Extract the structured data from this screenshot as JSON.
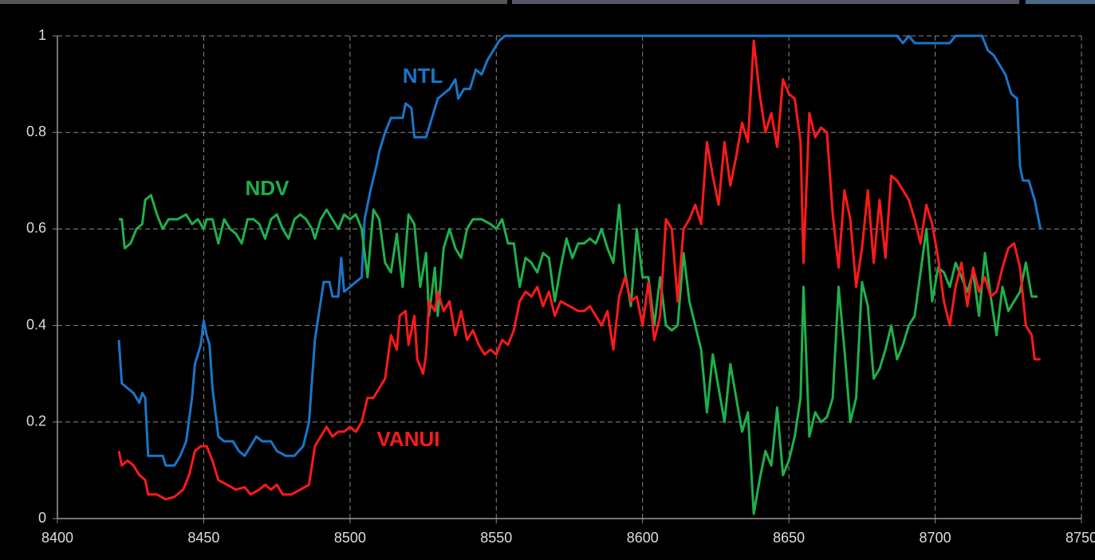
{
  "chart_data": {
    "type": "line",
    "xlim": [
      8400,
      8750
    ],
    "xticks": [
      8400,
      8450,
      8500,
      8550,
      8600,
      8650,
      8700,
      8750
    ],
    "ylim": [
      0,
      1
    ],
    "yticks": [
      0,
      0.2,
      0.4,
      0.6,
      0.8,
      1
    ],
    "grid": true,
    "series": [
      {
        "name": "NTL",
        "color": "#1a75c9",
        "x": [
          8421,
          8422,
          8424,
          8426,
          8428,
          8429,
          8430,
          8431,
          8436,
          8437,
          8440,
          8442,
          8444,
          8446,
          8447,
          8449,
          8450,
          8451,
          8452,
          8453,
          8455,
          8457,
          8460,
          8462,
          8464,
          8466,
          8468,
          8470,
          8473,
          8475,
          8478,
          8481,
          8484,
          8486,
          8488,
          8490,
          8491,
          8493,
          8494,
          8496,
          8497,
          8498,
          8500,
          8502,
          8504,
          8505,
          8507,
          8509,
          8510,
          8512,
          8514,
          8516,
          8518,
          8519,
          8521,
          8522,
          8526,
          8528,
          8530,
          8532,
          8534,
          8536,
          8537,
          8539,
          8541,
          8543,
          8545,
          8547,
          8549,
          8551,
          8553,
          8600,
          8650,
          8687,
          8689,
          8691,
          8693,
          8705,
          8707,
          8716,
          8718,
          8720,
          8722,
          8724,
          8726,
          8728,
          8729,
          8730,
          8732,
          8734,
          8736
        ],
        "values": [
          0.37,
          0.28,
          0.27,
          0.26,
          0.24,
          0.26,
          0.25,
          0.13,
          0.13,
          0.11,
          0.11,
          0.13,
          0.16,
          0.25,
          0.32,
          0.36,
          0.41,
          0.38,
          0.36,
          0.27,
          0.17,
          0.16,
          0.16,
          0.14,
          0.13,
          0.15,
          0.17,
          0.16,
          0.16,
          0.14,
          0.13,
          0.13,
          0.15,
          0.2,
          0.37,
          0.45,
          0.49,
          0.49,
          0.46,
          0.46,
          0.54,
          0.47,
          0.48,
          0.49,
          0.5,
          0.62,
          0.68,
          0.73,
          0.76,
          0.8,
          0.83,
          0.83,
          0.83,
          0.86,
          0.85,
          0.79,
          0.79,
          0.83,
          0.87,
          0.88,
          0.89,
          0.91,
          0.87,
          0.89,
          0.89,
          0.93,
          0.92,
          0.95,
          0.97,
          0.99,
          1,
          1,
          1,
          1,
          0.985,
          1,
          0.985,
          0.985,
          1,
          1,
          0.97,
          0.96,
          0.94,
          0.92,
          0.88,
          0.87,
          0.73,
          0.7,
          0.7,
          0.66,
          0.6
        ]
      },
      {
        "name": "NDV",
        "color": "#1fb04c",
        "x": [
          8421,
          8422,
          8423,
          8425,
          8427,
          8429,
          8430,
          8432,
          8434,
          8436,
          8438,
          8441,
          8444,
          8446,
          8448,
          8450,
          8451,
          8453,
          8455,
          8457,
          8459,
          8461,
          8463,
          8465,
          8467,
          8469,
          8471,
          8473,
          8475,
          8477,
          8479,
          8481,
          8483,
          8485,
          8487,
          8488,
          8490,
          8492,
          8494,
          8496,
          8498,
          8500,
          8502,
          8504,
          8506,
          8508,
          8510,
          8512,
          8514,
          8516,
          8518,
          8520,
          8522,
          8524,
          8526,
          8527,
          8529,
          8530,
          8532,
          8534,
          8536,
          8538,
          8540,
          8542,
          8545,
          8548,
          8550,
          8552,
          8554,
          8556,
          8558,
          8560,
          8562,
          8564,
          8566,
          8568,
          8570,
          8572,
          8574,
          8576,
          8578,
          8580,
          8582,
          8584,
          8586,
          8588,
          8590,
          8592,
          8594,
          8596,
          8598,
          8600,
          8602,
          8604,
          8606,
          8608,
          8610,
          8612,
          8614,
          8616,
          8618,
          8620,
          8622,
          8624,
          8626,
          8628,
          8630,
          8632,
          8634,
          8636,
          8638,
          8640,
          8642,
          8644,
          8646,
          8648,
          8650,
          8652,
          8654,
          8655,
          8657,
          8659,
          8661,
          8663,
          8665,
          8667,
          8669,
          8671,
          8673,
          8675,
          8677,
          8679,
          8681,
          8683,
          8685,
          8687,
          8689,
          8691,
          8693,
          8695,
          8697,
          8699,
          8701,
          8703,
          8705,
          8707,
          8709,
          8711,
          8713,
          8715,
          8717,
          8719,
          8721,
          8723,
          8725,
          8727,
          8729,
          8731,
          8733,
          8735
        ],
        "values": [
          0.62,
          0.62,
          0.56,
          0.57,
          0.6,
          0.61,
          0.66,
          0.67,
          0.63,
          0.6,
          0.62,
          0.62,
          0.63,
          0.61,
          0.62,
          0.6,
          0.62,
          0.62,
          0.57,
          0.62,
          0.6,
          0.59,
          0.57,
          0.62,
          0.62,
          0.61,
          0.58,
          0.62,
          0.63,
          0.6,
          0.58,
          0.62,
          0.63,
          0.62,
          0.6,
          0.58,
          0.62,
          0.64,
          0.62,
          0.6,
          0.63,
          0.62,
          0.63,
          0.6,
          0.5,
          0.64,
          0.62,
          0.53,
          0.51,
          0.59,
          0.48,
          0.63,
          0.61,
          0.48,
          0.55,
          0.42,
          0.52,
          0.42,
          0.56,
          0.6,
          0.56,
          0.54,
          0.6,
          0.62,
          0.62,
          0.61,
          0.6,
          0.62,
          0.57,
          0.57,
          0.48,
          0.54,
          0.53,
          0.51,
          0.55,
          0.54,
          0.45,
          0.52,
          0.58,
          0.54,
          0.57,
          0.57,
          0.58,
          0.57,
          0.6,
          0.56,
          0.53,
          0.65,
          0.51,
          0.44,
          0.6,
          0.5,
          0.5,
          0.4,
          0.5,
          0.4,
          0.39,
          0.4,
          0.55,
          0.45,
          0.4,
          0.35,
          0.22,
          0.34,
          0.27,
          0.2,
          0.32,
          0.25,
          0.18,
          0.22,
          0.01,
          0.08,
          0.14,
          0.11,
          0.23,
          0.09,
          0.12,
          0.17,
          0.25,
          0.48,
          0.17,
          0.22,
          0.2,
          0.21,
          0.25,
          0.48,
          0.35,
          0.2,
          0.25,
          0.49,
          0.44,
          0.29,
          0.31,
          0.35,
          0.4,
          0.33,
          0.36,
          0.4,
          0.42,
          0.51,
          0.6,
          0.45,
          0.52,
          0.51,
          0.48,
          0.53,
          0.5,
          0.47,
          0.51,
          0.42,
          0.55,
          0.46,
          0.38,
          0.48,
          0.43,
          0.45,
          0.47,
          0.53,
          0.46,
          0.46
        ]
      },
      {
        "name": "VANUI",
        "color": "#ff1a1a",
        "x": [
          8421,
          8422,
          8424,
          8426,
          8428,
          8430,
          8431,
          8434,
          8437,
          8440,
          8443,
          8445,
          8447,
          8449,
          8451,
          8453,
          8455,
          8458,
          8461,
          8464,
          8466,
          8469,
          8471,
          8473,
          8475,
          8477,
          8480,
          8483,
          8486,
          8488,
          8490,
          8492,
          8494,
          8496,
          8498,
          8500,
          8502,
          8504,
          8506,
          8508,
          8510,
          8512,
          8514,
          8516,
          8517,
          8519,
          8520,
          8522,
          8523,
          8525,
          8526,
          8527,
          8529,
          8530,
          8532,
          8534,
          8536,
          8538,
          8540,
          8542,
          8544,
          8546,
          8548,
          8550,
          8552,
          8554,
          8556,
          8558,
          8560,
          8562,
          8564,
          8566,
          8568,
          8570,
          8572,
          8575,
          8578,
          8580,
          8582,
          8584,
          8586,
          8588,
          8590,
          8592,
          8594,
          8596,
          8598,
          8600,
          8602,
          8604,
          8606,
          8608,
          8610,
          8612,
          8614,
          8616,
          8618,
          8620,
          8622,
          8624,
          8626,
          8628,
          8630,
          8632,
          8634,
          8636,
          8638,
          8640,
          8642,
          8644,
          8646,
          8648,
          8650,
          8652,
          8654,
          8655,
          8657,
          8659,
          8661,
          8663,
          8665,
          8667,
          8669,
          8671,
          8673,
          8675,
          8677,
          8679,
          8681,
          8683,
          8685,
          8687,
          8689,
          8691,
          8693,
          8695,
          8697,
          8699,
          8701,
          8703,
          8705,
          8707,
          8709,
          8711,
          8713,
          8715,
          8717,
          8719,
          8721,
          8723,
          8725,
          8727,
          8729,
          8731,
          8733,
          8734,
          8736
        ],
        "values": [
          0.14,
          0.11,
          0.12,
          0.11,
          0.09,
          0.08,
          0.05,
          0.05,
          0.04,
          0.045,
          0.06,
          0.09,
          0.14,
          0.15,
          0.15,
          0.12,
          0.08,
          0.07,
          0.06,
          0.065,
          0.05,
          0.06,
          0.07,
          0.06,
          0.07,
          0.05,
          0.05,
          0.06,
          0.07,
          0.15,
          0.17,
          0.19,
          0.17,
          0.18,
          0.18,
          0.19,
          0.18,
          0.2,
          0.25,
          0.25,
          0.27,
          0.29,
          0.38,
          0.35,
          0.42,
          0.43,
          0.36,
          0.42,
          0.33,
          0.3,
          0.34,
          0.45,
          0.43,
          0.47,
          0.43,
          0.45,
          0.38,
          0.43,
          0.37,
          0.39,
          0.36,
          0.34,
          0.35,
          0.34,
          0.37,
          0.36,
          0.39,
          0.45,
          0.47,
          0.46,
          0.48,
          0.44,
          0.47,
          0.42,
          0.45,
          0.44,
          0.43,
          0.43,
          0.44,
          0.42,
          0.4,
          0.43,
          0.35,
          0.46,
          0.5,
          0.45,
          0.46,
          0.4,
          0.49,
          0.37,
          0.42,
          0.62,
          0.6,
          0.45,
          0.6,
          0.62,
          0.65,
          0.61,
          0.78,
          0.71,
          0.65,
          0.78,
          0.69,
          0.75,
          0.82,
          0.78,
          0.99,
          0.88,
          0.8,
          0.84,
          0.77,
          0.91,
          0.88,
          0.87,
          0.78,
          0.53,
          0.84,
          0.79,
          0.81,
          0.8,
          0.63,
          0.52,
          0.68,
          0.62,
          0.48,
          0.56,
          0.68,
          0.53,
          0.66,
          0.54,
          0.71,
          0.7,
          0.68,
          0.66,
          0.62,
          0.57,
          0.65,
          0.61,
          0.54,
          0.45,
          0.4,
          0.48,
          0.53,
          0.44,
          0.52,
          0.47,
          0.5,
          0.46,
          0.47,
          0.52,
          0.56,
          0.57,
          0.52,
          0.4,
          0.38,
          0.33,
          0.33
        ]
      }
    ]
  }
}
